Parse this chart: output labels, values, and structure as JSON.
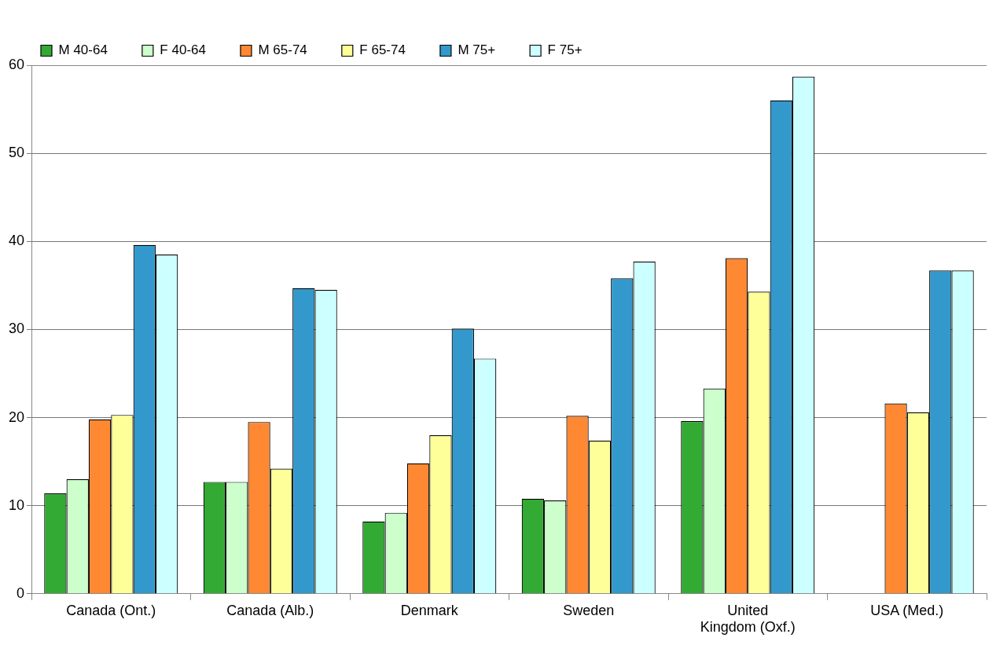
{
  "chart_data": {
    "type": "bar",
    "categories": [
      "Canada (Ont.)",
      "Canada (Alb.)",
      "Denmark",
      "Sweden",
      "United Kingdom (Oxf.)",
      "USA (Med.)"
    ],
    "series": [
      {
        "name": "M 40-64",
        "color": "#33aa33",
        "values": [
          11.4,
          12.7,
          8.2,
          10.8,
          19.6,
          null
        ]
      },
      {
        "name": "F 40-64",
        "color": "#ccffcc",
        "values": [
          13.0,
          12.7,
          9.2,
          10.6,
          23.3,
          null
        ]
      },
      {
        "name": "M 65-74",
        "color": "#ff8833",
        "values": [
          19.8,
          19.5,
          14.8,
          20.2,
          38.1,
          21.6
        ]
      },
      {
        "name": "F 65-74",
        "color": "#ffff99",
        "values": [
          20.3,
          14.2,
          18.0,
          17.4,
          34.3,
          20.6
        ]
      },
      {
        "name": "M 75+",
        "color": "#3399cc",
        "values": [
          39.6,
          34.7,
          30.1,
          35.8,
          56.0,
          36.7
        ]
      },
      {
        "name": "F 75+",
        "color": "#ccffff",
        "values": [
          38.5,
          34.5,
          26.7,
          37.7,
          58.7,
          36.7
        ]
      }
    ],
    "ylim": [
      0,
      60
    ],
    "yticks": [
      0,
      10,
      20,
      30,
      40,
      50,
      60
    ],
    "grid": "y",
    "legend": "top"
  }
}
